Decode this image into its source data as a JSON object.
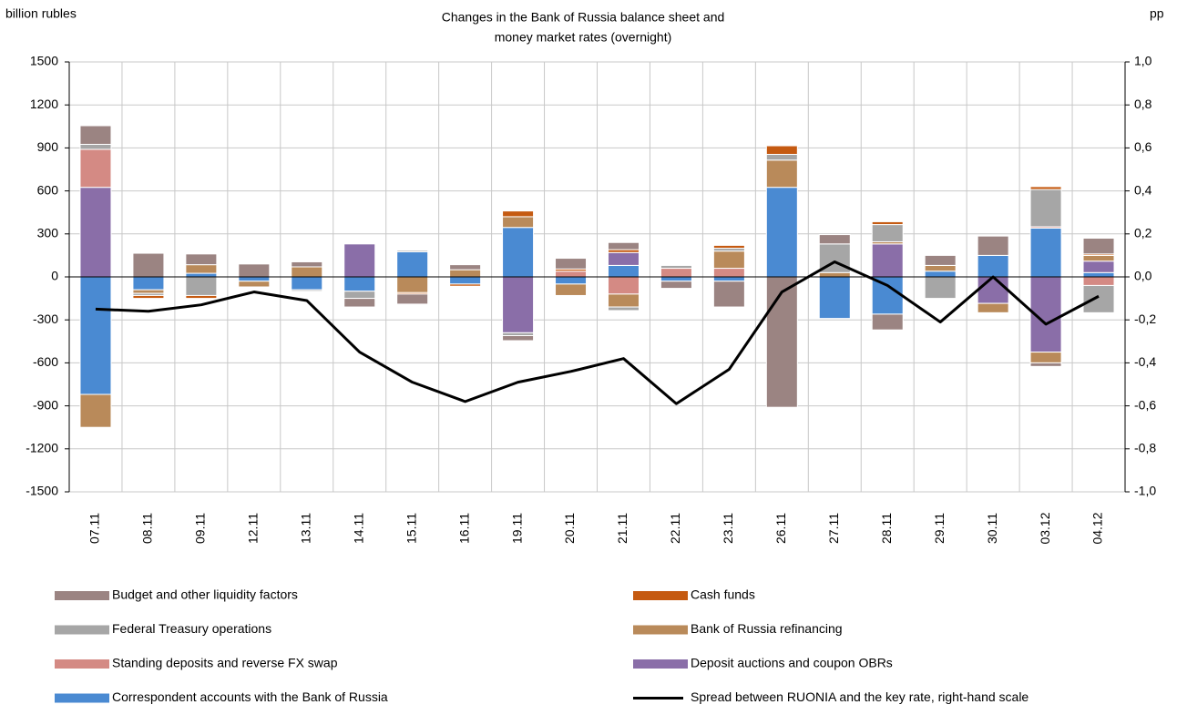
{
  "chart_data": {
    "type": "bar",
    "title": [
      "Changes in the Bank of Russia balance sheet and",
      "money market rates (overnight)"
    ],
    "y_label": "billion rubles",
    "y2_label": "pp",
    "categories": [
      "07.11",
      "08.11",
      "09.11",
      "12.11",
      "13.11",
      "14.11",
      "15.11",
      "16.11",
      "19.11",
      "20.11",
      "21.11",
      "22.11",
      "23.11",
      "26.11",
      "27.11",
      "28.11",
      "29.11",
      "30.11",
      "03.12",
      "04.12"
    ],
    "ylim": [
      -1500,
      1500
    ],
    "yticks": [
      -1500,
      -1200,
      -900,
      -600,
      -300,
      0,
      300,
      600,
      900,
      1200,
      1500
    ],
    "y2lim": [
      -1,
      1
    ],
    "y2ticks": [
      {
        "value": -1,
        "label": "-1,0"
      },
      {
        "value": -0.8,
        "label": "-0,8"
      },
      {
        "value": -0.6,
        "label": "-0,6"
      },
      {
        "value": -0.4,
        "label": "-0,4"
      },
      {
        "value": -0.2,
        "label": "-0,2"
      },
      {
        "value": 0,
        "label": "0,0"
      },
      {
        "value": 0.2,
        "label": "0,2"
      },
      {
        "value": 0.4,
        "label": "0,4"
      },
      {
        "value": 0.6,
        "label": "0,6"
      },
      {
        "value": 0.8,
        "label": "0,8"
      },
      {
        "value": 1,
        "label": "1,0"
      }
    ],
    "grid": true,
    "series": [
      {
        "name": "Budget and other liquidity factors",
        "color": "#9b8482",
        "values": [
          130,
          165,
          75,
          90,
          35,
          -60,
          -70,
          35,
          -35,
          75,
          50,
          -50,
          -180,
          -910,
          65,
          -110,
          70,
          135,
          -25,
          110
        ]
      },
      {
        "name": "Cash funds",
        "color": "#c55a11",
        "values": [
          0,
          -20,
          -20,
          0,
          0,
          0,
          -10,
          -15,
          40,
          15,
          20,
          0,
          20,
          60,
          0,
          20,
          0,
          0,
          20,
          10
        ]
      },
      {
        "name": "Federal Treasury operations",
        "color": "#a6a6a6",
        "values": [
          35,
          -15,
          -130,
          0,
          -10,
          -50,
          10,
          0,
          -20,
          0,
          -25,
          20,
          20,
          40,
          200,
          120,
          -150,
          0,
          260,
          -190
        ]
      },
      {
        "name": "Bank of Russia refinancing",
        "color": "#b98a5a",
        "values": [
          -230,
          -25,
          60,
          -40,
          70,
          0,
          -110,
          50,
          75,
          -80,
          -90,
          0,
          120,
          190,
          30,
          15,
          40,
          -65,
          -75,
          40
        ]
      },
      {
        "name": "Standing deposits and reverse FX swap",
        "color": "#d48a84",
        "values": [
          265,
          0,
          0,
          0,
          0,
          0,
          0,
          0,
          0,
          40,
          -120,
          60,
          60,
          0,
          0,
          0,
          0,
          0,
          10,
          -60
        ]
      },
      {
        "name": "Deposit auctions and coupon OBRs",
        "color": "#8a6ea8",
        "values": [
          625,
          0,
          0,
          0,
          0,
          230,
          0,
          0,
          -390,
          0,
          90,
          0,
          0,
          0,
          0,
          230,
          0,
          -185,
          -525,
          80
        ]
      },
      {
        "name": "Correspondent accounts with the Bank of Russia",
        "color": "#4a8ad2",
        "values": [
          -820,
          -90,
          25,
          -30,
          -90,
          -100,
          175,
          -50,
          345,
          -50,
          80,
          -30,
          -30,
          625,
          -290,
          -260,
          40,
          150,
          340,
          30
        ]
      },
      {
        "name": "Spread between RUONIA and the key rate, right-hand scale",
        "color": "#000000",
        "axis": "y2",
        "type": "line",
        "values": [
          -0.15,
          -0.16,
          -0.13,
          -0.07,
          -0.11,
          -0.35,
          -0.49,
          -0.58,
          -0.49,
          -0.44,
          -0.38,
          -0.59,
          -0.43,
          -0.07,
          0.07,
          -0.04,
          -0.21,
          0.0,
          -0.22,
          -0.09
        ]
      }
    ]
  }
}
